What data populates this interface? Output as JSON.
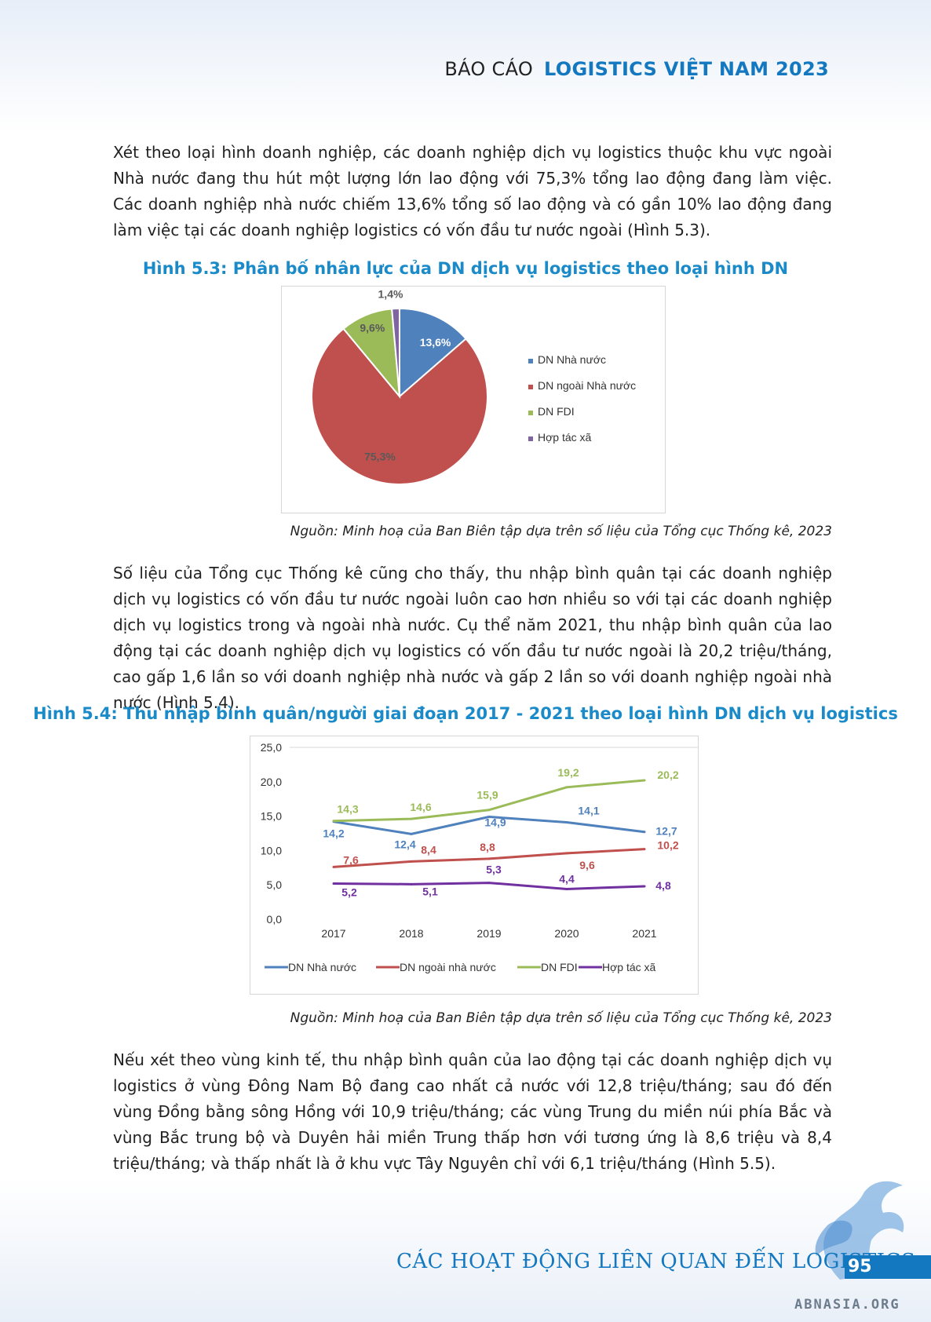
{
  "header": {
    "light": "BÁO CÁO",
    "bold": "LOGISTICS VIỆT NAM 2023"
  },
  "paragraphs": [
    "Xét theo loại hình doanh nghiệp, các doanh nghiệp dịch vụ logistics thuộc khu vực ngoài Nhà nước đang thu hút một lượng lớn lao động với 75,3% tổng lao động đang làm việc. Các doanh nghiệp nhà nước chiếm 13,6% tổng số lao động và có gần 10% lao động đang làm việc tại các doanh nghiệp logistics có vốn đầu tư nước ngoài (Hình 5.3).",
    "Số liệu của Tổng cục Thống kê cũng cho thấy, thu nhập bình quân tại các doanh nghiệp dịch vụ logistics có vốn đầu tư nước ngoài luôn cao hơn nhiều so với tại các doanh nghiệp dịch vụ logistics trong và ngoài nhà nước. Cụ thể năm 2021, thu nhập bình quân của lao động tại các doanh nghiệp dịch vụ logistics có vốn đầu tư nước ngoài là 20,2 triệu/tháng, cao gấp 1,6 lần so với doanh nghiệp nhà nước và gấp 2 lần so với doanh nghiệp ngoài nhà nước (Hình 5.4).",
    "Nếu xét theo vùng kinh tế, thu nhập bình quân của lao động tại các doanh nghiệp dịch vụ logistics ở vùng Đông Nam Bộ đang cao nhất cả nước với 12,8 triệu/tháng; sau đó đến vùng Đồng bằng sông Hồng với 10,9 triệu/tháng; các vùng Trung du miền núi phía Bắc và vùng Bắc trung bộ và Duyên hải miền Trung thấp hơn với tương ứng là 8,6 triệu và 8,4 triệu/tháng; và thấp nhất là ở khu vực Tây Nguyên chỉ với 6,1 triệu/tháng (Hình 5.5)."
  ],
  "figures": {
    "fig53_title": "Hình 5.3: Phân bố nhân lực của DN dịch vụ logistics theo loại hình DN",
    "fig54_title": "Hình 5.4: Thu nhập bình quân/người giai đoạn 2017 - 2021 theo loại hình DN dịch vụ logistics",
    "source": "Nguồn: Minh hoạ của Ban Biên tập dựa trên số liệu của Tổng cục Thống kê, 2023"
  },
  "chart_data": [
    {
      "type": "pie",
      "title": "Hình 5.3: Phân bố nhân lực của DN dịch vụ logistics theo loại hình DN",
      "categories": [
        "DN Nhà nước",
        "DN ngoài Nhà nước",
        "DN FDI",
        "Hợp tác xã"
      ],
      "values": [
        13.6,
        75.3,
        9.6,
        1.4
      ],
      "labels": [
        "13,6%",
        "75,3%",
        "9,6%",
        "1,4%"
      ],
      "colors": [
        "#4f81bd",
        "#c0504d",
        "#9bbb59",
        "#8064a2"
      ],
      "legend": "right"
    },
    {
      "type": "line",
      "title": "Hình 5.4: Thu nhập bình quân/người giai đoạn 2017 - 2021 theo loại hình DN dịch vụ logistics",
      "categories": [
        "2017",
        "2018",
        "2019",
        "2020",
        "2021"
      ],
      "ylim": [
        0,
        25
      ],
      "yticks": [
        "0,0",
        "5,0",
        "10,0",
        "15,0",
        "20,0",
        "25,0"
      ],
      "grid": false,
      "legend": "bottom",
      "series": [
        {
          "name": "DN Nhà nước",
          "color": "#4f81bd",
          "values": [
            14.2,
            12.4,
            14.9,
            14.1,
            12.7
          ],
          "labels": [
            "14,2",
            "12,4",
            "14,9",
            "14,1",
            "12,7"
          ]
        },
        {
          "name": "DN ngoài nhà nước",
          "color": "#c0504d",
          "values": [
            7.6,
            8.4,
            8.8,
            9.6,
            10.2
          ],
          "labels": [
            "7,6",
            "8,4",
            "8,8",
            "9,6",
            "10,2"
          ]
        },
        {
          "name": "DN FDI",
          "color": "#9bbb59",
          "values": [
            14.3,
            14.6,
            15.9,
            19.2,
            20.2
          ],
          "labels": [
            "14,3",
            "14,6",
            "15,9",
            "19,2",
            "20,2"
          ]
        },
        {
          "name": "Hợp tác xã",
          "color": "#7030a0",
          "values": [
            5.2,
            5.1,
            5.3,
            4.4,
            4.8
          ],
          "labels": [
            "5,2",
            "5,1",
            "5,3",
            "4,4",
            "4,8"
          ]
        }
      ]
    }
  ],
  "footer": {
    "title": "CÁC HOẠT ĐỘNG LIÊN QUAN ĐẾN LOGISTICS",
    "page": "95",
    "watermark": "ABNASIA.ORG"
  }
}
